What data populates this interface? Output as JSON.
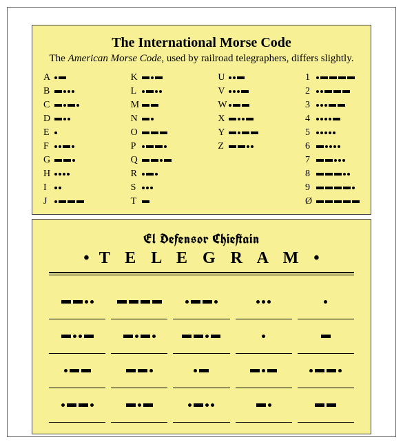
{
  "colors": {
    "card_bg": "#f7f095",
    "border": "#444444",
    "ink": "#000000",
    "page_bg": "#ffffff"
  },
  "top": {
    "title": "The International Morse Code",
    "subtitle_pre": "The ",
    "subtitle_em": "American Morse Code,",
    "subtitle_post": " used by railroad telegraphers, differs slightly.",
    "columns": [
      [
        {
          "ch": "A",
          "m": ". -"
        },
        {
          "ch": "B",
          "m": "- . . ."
        },
        {
          "ch": "C",
          "m": "- . - ."
        },
        {
          "ch": "D",
          "m": "- . ."
        },
        {
          "ch": "E",
          "m": "."
        },
        {
          "ch": "F",
          "m": ". . - ."
        },
        {
          "ch": "G",
          "m": "- - ."
        },
        {
          "ch": "H",
          "m": ". . . ."
        },
        {
          "ch": "I",
          "m": ". ."
        },
        {
          "ch": "J",
          "m": ". - - -"
        }
      ],
      [
        {
          "ch": "K",
          "m": "- . -"
        },
        {
          "ch": "L",
          "m": ". - . ."
        },
        {
          "ch": "M",
          "m": "- -"
        },
        {
          "ch": "N",
          "m": "- ."
        },
        {
          "ch": "O",
          "m": "- - -"
        },
        {
          "ch": "P",
          "m": ". - - ."
        },
        {
          "ch": "Q",
          "m": "- - . -"
        },
        {
          "ch": "R",
          "m": ". - ."
        },
        {
          "ch": "S",
          "m": ". . ."
        },
        {
          "ch": "T",
          "m": "-"
        }
      ],
      [
        {
          "ch": "U",
          "m": ". . -"
        },
        {
          "ch": "V",
          "m": ". . . -"
        },
        {
          "ch": "W",
          "m": ". - -"
        },
        {
          "ch": "X",
          "m": "- . . -"
        },
        {
          "ch": "Y",
          "m": "- . - -"
        },
        {
          "ch": "Z",
          "m": "- - . ."
        }
      ],
      [
        {
          "ch": "1",
          "m": ". - - - -"
        },
        {
          "ch": "2",
          "m": ". . - - -"
        },
        {
          "ch": "3",
          "m": ". . . - -"
        },
        {
          "ch": "4",
          "m": ". . . . -"
        },
        {
          "ch": "5",
          "m": ". . . . ."
        },
        {
          "ch": "6",
          "m": "- . . . ."
        },
        {
          "ch": "7",
          "m": "- - . . ."
        },
        {
          "ch": "8",
          "m": "- - - . ."
        },
        {
          "ch": "9",
          "m": "- - - - ."
        },
        {
          "ch": "Ø",
          "m": "- - - - -"
        }
      ]
    ]
  },
  "bottom": {
    "masthead": "El Defensor Chieftain",
    "label": "T E L E G R A M",
    "cells": [
      "- - . .",
      "- - - -",
      ". - - .",
      ". . .",
      ".",
      "- . . -",
      "- . - .",
      "- - . -",
      ".",
      "-",
      ". - -",
      "- - .",
      ". -",
      "- . -",
      ". - - .",
      ". - - .",
      "- . -",
      ". - . .",
      "- .",
      "- -"
    ]
  }
}
